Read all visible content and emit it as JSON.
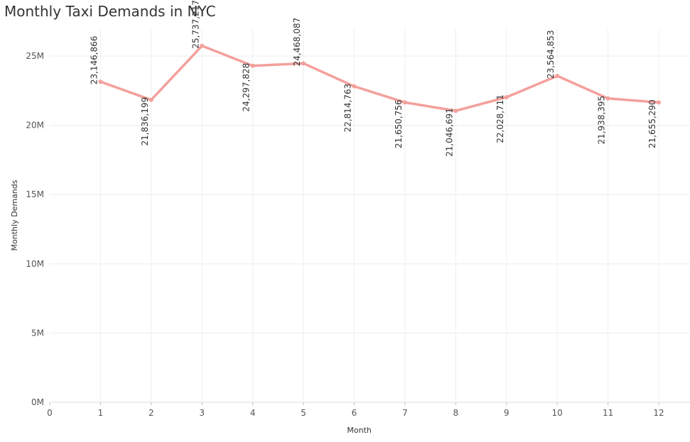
{
  "chart_data": {
    "type": "line",
    "title": "Monthly Taxi Demands in NYC",
    "xlabel": "Month",
    "ylabel": "Monthly Demands",
    "x_ticks": [
      "0",
      "1",
      "2",
      "3",
      "4",
      "5",
      "6",
      "7",
      "8",
      "9",
      "10",
      "11",
      "12"
    ],
    "y_ticks": [
      "0M",
      "5M",
      "10M",
      "15M",
      "20M",
      "25M"
    ],
    "xlim": [
      0,
      12.35
    ],
    "ylim": [
      0,
      27000000
    ],
    "grid": true,
    "line_color": "#f4a09c",
    "series": [
      {
        "x": [
          1,
          2,
          3,
          4,
          5,
          6,
          7,
          8,
          9,
          10,
          11,
          12
        ],
        "values": [
          23146866,
          21836199,
          25737217,
          24297828,
          24468087,
          22814763,
          21650756,
          21046691,
          22028711,
          23564853,
          21938395,
          21655290
        ],
        "labels": [
          "23,146,866",
          "21,836,199",
          "25,737,217",
          "24,297,828",
          "24,468,087",
          "22,814,763",
          "21,650,756",
          "21,046,691",
          "22,028,711",
          "23,564,853",
          "21,938,395",
          "21,655,290"
        ]
      }
    ]
  }
}
